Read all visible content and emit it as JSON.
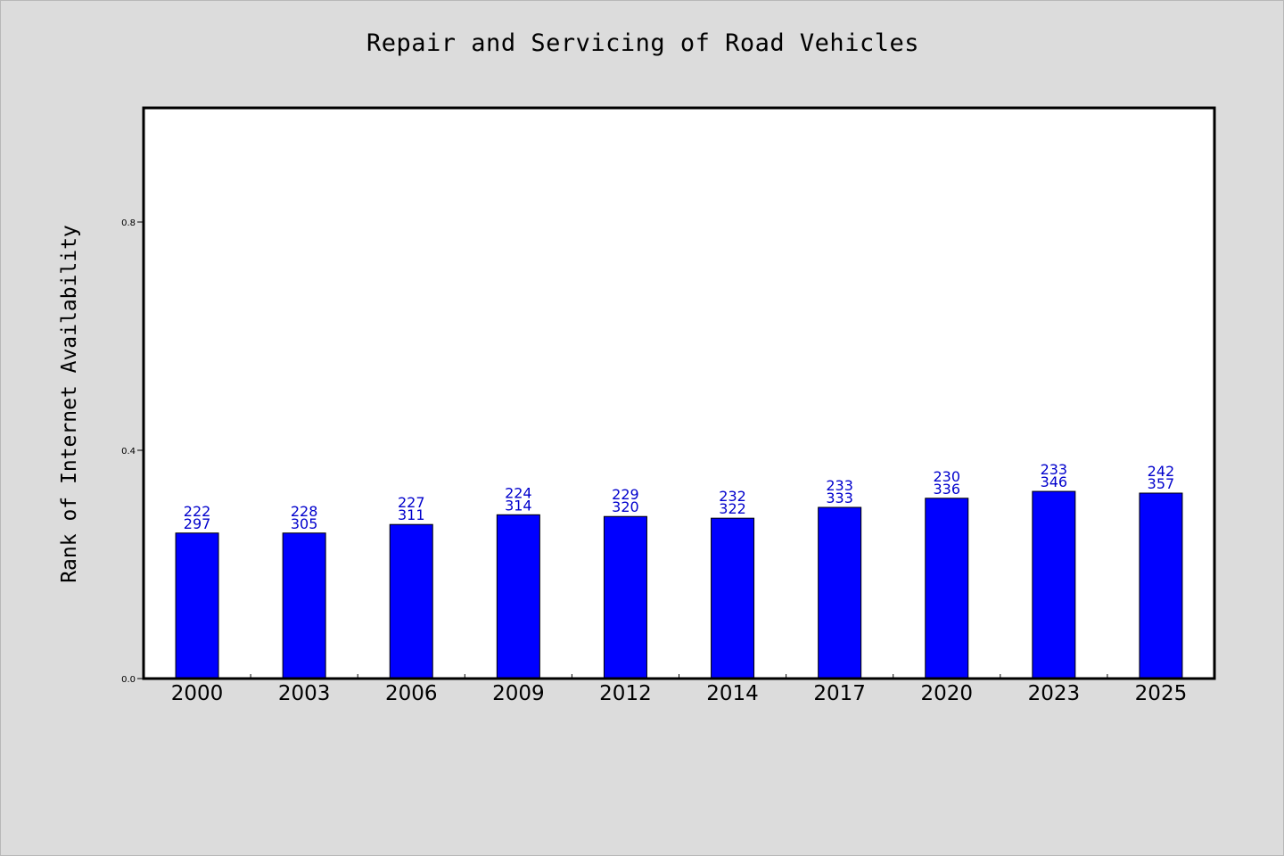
{
  "chart_data": {
    "type": "bar",
    "title": "Repair and Servicing of Road Vehicles",
    "xlabel": "",
    "ylabel": "Rank of Internet Availability",
    "categories": [
      "2000",
      "2003",
      "2006",
      "2009",
      "2012",
      "2014",
      "2017",
      "2020",
      "2023",
      "2025"
    ],
    "values": [
      0.255,
      0.255,
      0.27,
      0.287,
      0.284,
      0.281,
      0.3,
      0.316,
      0.328,
      0.325
    ],
    "data_labels": [
      [
        "222",
        "297"
      ],
      [
        "228",
        "305"
      ],
      [
        "227",
        "311"
      ],
      [
        "224",
        "314"
      ],
      [
        "229",
        "320"
      ],
      [
        "232",
        "322"
      ],
      [
        "233",
        "333"
      ],
      [
        "230",
        "336"
      ],
      [
        "233",
        "346"
      ],
      [
        "242",
        "357"
      ]
    ],
    "ylim": [
      0,
      1.0
    ],
    "yticks": [
      {
        "value": 0.0,
        "label": "0.0"
      },
      {
        "value": 0.4,
        "label": "0.4"
      },
      {
        "value": 0.8,
        "label": "0.8"
      }
    ],
    "grid": false,
    "legend": "none",
    "colors": {
      "bar": "#0000ff",
      "bar_edge": "#000000",
      "data_label": "#0000cc",
      "background": "#dcdcdc",
      "plot_background": "#ffffff"
    }
  }
}
